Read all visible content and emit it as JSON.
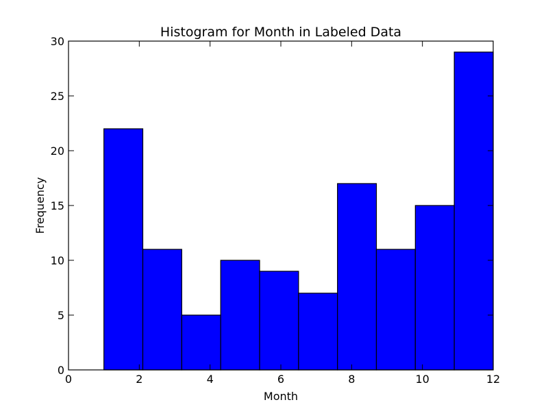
{
  "chart_data": {
    "type": "bar",
    "title": "Histogram for Month in Labeled Data",
    "xlabel": "Month",
    "ylabel": "Frequency",
    "xlim": [
      0,
      12
    ],
    "ylim": [
      0,
      30
    ],
    "x_ticks": [
      0,
      2,
      4,
      6,
      8,
      10,
      12
    ],
    "y_ticks": [
      0,
      5,
      10,
      15,
      20,
      25,
      30
    ],
    "bin_edges": [
      1.0,
      2.1,
      3.2,
      4.3,
      5.4,
      6.5,
      7.6,
      8.7,
      9.8,
      10.9,
      12.0
    ],
    "values": [
      22,
      11,
      5,
      10,
      9,
      7,
      17,
      11,
      15,
      29
    ],
    "bar_color": "#0000ff",
    "edge_color": "#000000",
    "grid": false,
    "legend": "none"
  }
}
